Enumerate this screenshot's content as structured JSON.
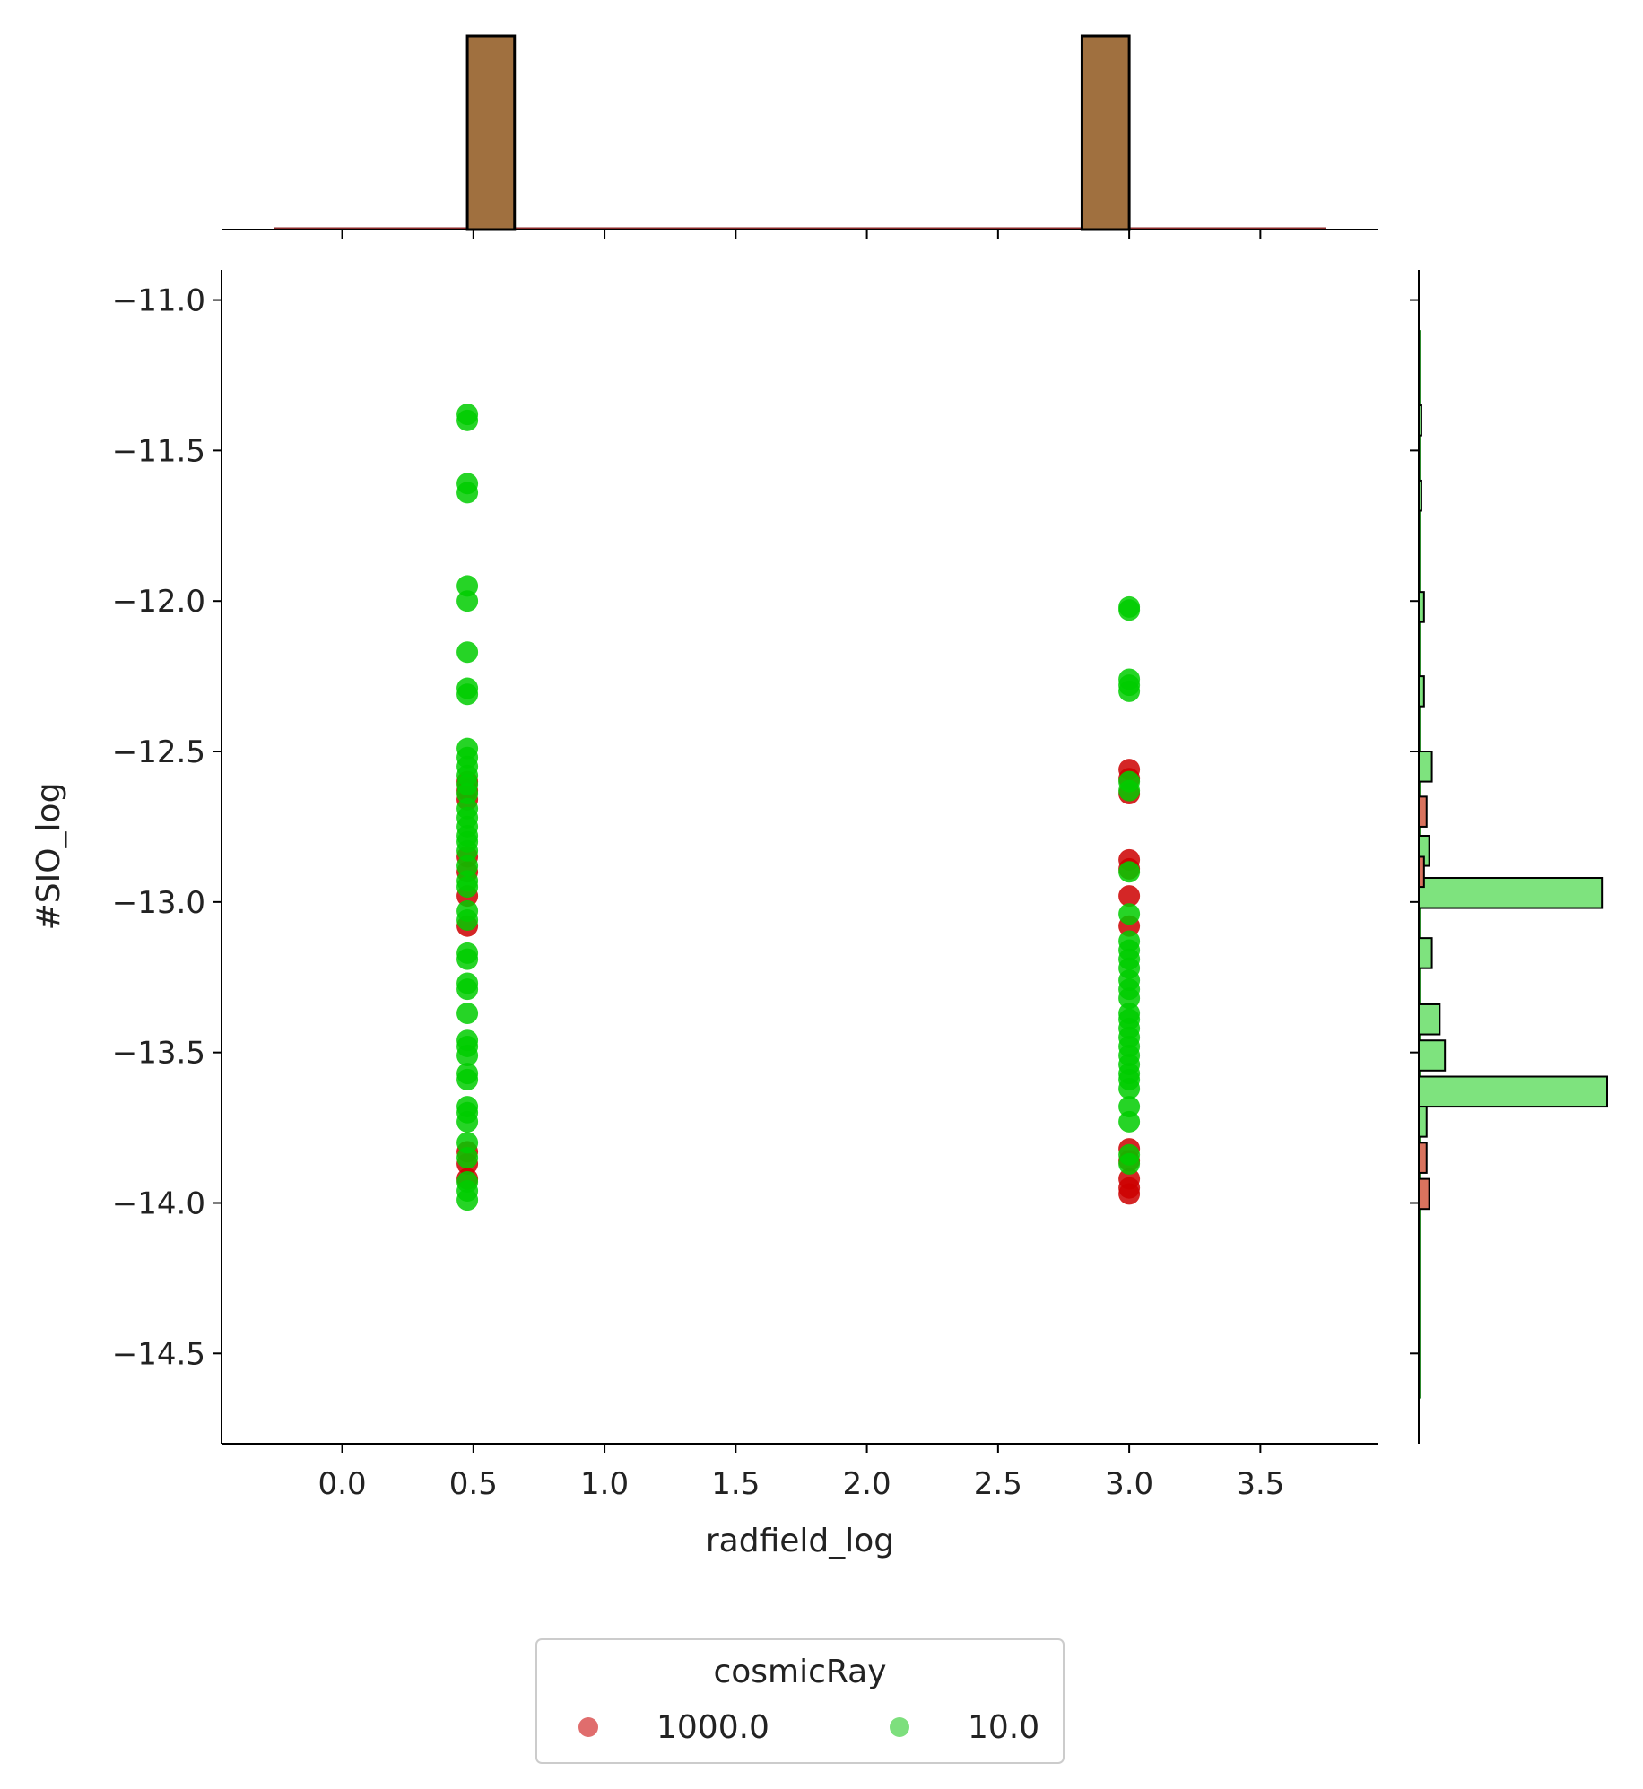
{
  "chart_data": {
    "type": "scatter",
    "subtype": "jointplot",
    "xlabel": "radfield_log",
    "ylabel": "#SIO_log",
    "xlim": [
      -0.46,
      3.95
    ],
    "ylim": [
      -14.8,
      -10.9
    ],
    "x_ticks": [
      0.0,
      0.5,
      1.0,
      1.5,
      2.0,
      2.5,
      3.0,
      3.5
    ],
    "x_tick_labels": [
      "0.0",
      "0.5",
      "1.0",
      "1.5",
      "2.0",
      "2.5",
      "3.0",
      "3.5"
    ],
    "y_ticks": [
      -11.0,
      -11.5,
      -12.0,
      -12.5,
      -13.0,
      -13.5,
      -14.0,
      -14.5
    ],
    "y_tick_labels": [
      "−11.0",
      "−11.5",
      "−12.0",
      "−12.5",
      "−13.0",
      "−13.5",
      "−14.0",
      "−14.5"
    ],
    "grid": false,
    "legend": {
      "title": "cosmicRay",
      "position": "bottom-center",
      "entries": [
        {
          "label": "1000.0",
          "color": "#e06d6d"
        },
        {
          "label": "10.0",
          "color": "#7ddf7d"
        }
      ]
    },
    "series": [
      {
        "name": "1000.0",
        "color": "#cc0000",
        "points": [
          [
            0.477,
            -12.6
          ],
          [
            0.477,
            -12.63
          ],
          [
            0.477,
            -12.66
          ],
          [
            0.477,
            -12.85
          ],
          [
            0.477,
            -12.9
          ],
          [
            0.477,
            -12.98
          ],
          [
            0.477,
            -13.08
          ],
          [
            0.477,
            -13.83
          ],
          [
            0.477,
            -13.87
          ],
          [
            0.477,
            -13.92
          ],
          [
            3.0,
            -12.56
          ],
          [
            3.0,
            -12.59
          ],
          [
            3.0,
            -12.64
          ],
          [
            3.0,
            -12.86
          ],
          [
            3.0,
            -12.89
          ],
          [
            3.0,
            -12.98
          ],
          [
            3.0,
            -13.08
          ],
          [
            3.0,
            -13.82
          ],
          [
            3.0,
            -13.86
          ],
          [
            3.0,
            -13.92
          ],
          [
            3.0,
            -13.95
          ],
          [
            3.0,
            -13.97
          ]
        ]
      },
      {
        "name": "10.0",
        "color": "#00cc00",
        "points": [
          [
            0.477,
            -11.38
          ],
          [
            0.477,
            -11.4
          ],
          [
            0.477,
            -11.61
          ],
          [
            0.477,
            -11.64
          ],
          [
            0.477,
            -11.95
          ],
          [
            0.477,
            -12.0
          ],
          [
            0.477,
            -12.17
          ],
          [
            0.477,
            -12.29
          ],
          [
            0.477,
            -12.31
          ],
          [
            0.477,
            -12.49
          ],
          [
            0.477,
            -12.52
          ],
          [
            0.477,
            -12.55
          ],
          [
            0.477,
            -12.58
          ],
          [
            0.477,
            -12.61
          ],
          [
            0.477,
            -12.64
          ],
          [
            0.477,
            -12.69
          ],
          [
            0.477,
            -12.72
          ],
          [
            0.477,
            -12.75
          ],
          [
            0.477,
            -12.78
          ],
          [
            0.477,
            -12.8
          ],
          [
            0.477,
            -12.83
          ],
          [
            0.477,
            -12.88
          ],
          [
            0.477,
            -12.93
          ],
          [
            0.477,
            -12.95
          ],
          [
            0.477,
            -13.03
          ],
          [
            0.477,
            -13.06
          ],
          [
            0.477,
            -13.17
          ],
          [
            0.477,
            -13.19
          ],
          [
            0.477,
            -13.27
          ],
          [
            0.477,
            -13.29
          ],
          [
            0.477,
            -13.37
          ],
          [
            0.477,
            -13.46
          ],
          [
            0.477,
            -13.48
          ],
          [
            0.477,
            -13.51
          ],
          [
            0.477,
            -13.57
          ],
          [
            0.477,
            -13.59
          ],
          [
            0.477,
            -13.68
          ],
          [
            0.477,
            -13.7
          ],
          [
            0.477,
            -13.73
          ],
          [
            0.477,
            -13.8
          ],
          [
            0.477,
            -13.85
          ],
          [
            0.477,
            -13.93
          ],
          [
            0.477,
            -13.96
          ],
          [
            0.477,
            -13.99
          ],
          [
            3.0,
            -12.02
          ],
          [
            3.0,
            -12.03
          ],
          [
            3.0,
            -12.26
          ],
          [
            3.0,
            -12.28
          ],
          [
            3.0,
            -12.3
          ],
          [
            3.0,
            -12.6
          ],
          [
            3.0,
            -12.63
          ],
          [
            3.0,
            -12.9
          ],
          [
            3.0,
            -13.04
          ],
          [
            3.0,
            -13.13
          ],
          [
            3.0,
            -13.16
          ],
          [
            3.0,
            -13.19
          ],
          [
            3.0,
            -13.22
          ],
          [
            3.0,
            -13.26
          ],
          [
            3.0,
            -13.29
          ],
          [
            3.0,
            -13.32
          ],
          [
            3.0,
            -13.37
          ],
          [
            3.0,
            -13.39
          ],
          [
            3.0,
            -13.42
          ],
          [
            3.0,
            -13.45
          ],
          [
            3.0,
            -13.48
          ],
          [
            3.0,
            -13.51
          ],
          [
            3.0,
            -13.54
          ],
          [
            3.0,
            -13.57
          ],
          [
            3.0,
            -13.59
          ],
          [
            3.0,
            -13.62
          ],
          [
            3.0,
            -13.68
          ],
          [
            3.0,
            -13.73
          ],
          [
            3.0,
            -13.84
          ],
          [
            3.0,
            -13.87
          ]
        ]
      }
    ],
    "marginal_x": {
      "type": "histogram",
      "color": "#a0703f",
      "bins": [
        {
          "x0": 0.477,
          "x1": 0.657,
          "count": 54
        },
        {
          "x0": 2.82,
          "x1": 3.0,
          "count": 54
        }
      ]
    },
    "marginal_y": {
      "type": "histogram",
      "series": [
        {
          "name": "10.0",
          "color": "#7ee37e",
          "bins": [
            {
              "y0": -11.45,
              "y1": -11.35,
              "count": 1
            },
            {
              "y0": -11.7,
              "y1": -11.6,
              "count": 1
            },
            {
              "y0": -12.07,
              "y1": -11.97,
              "count": 2
            },
            {
              "y0": -12.35,
              "y1": -12.25,
              "count": 2
            },
            {
              "y0": -12.6,
              "y1": -12.5,
              "count": 5
            },
            {
              "y0": -12.88,
              "y1": -12.78,
              "count": 4
            },
            {
              "y0": -13.02,
              "y1": -12.92,
              "count": 70
            },
            {
              "y0": -13.22,
              "y1": -13.12,
              "count": 5
            },
            {
              "y0": -13.44,
              "y1": -13.34,
              "count": 8
            },
            {
              "y0": -13.56,
              "y1": -13.46,
              "count": 10
            },
            {
              "y0": -13.68,
              "y1": -13.58,
              "count": 72
            },
            {
              "y0": -13.78,
              "y1": -13.68,
              "count": 3
            }
          ]
        },
        {
          "name": "1000.0",
          "color": "#d9735e",
          "bins": [
            {
              "y0": -12.75,
              "y1": -12.65,
              "count": 3
            },
            {
              "y0": -12.95,
              "y1": -12.85,
              "count": 2
            },
            {
              "y0": -13.9,
              "y1": -13.8,
              "count": 3
            },
            {
              "y0": -14.02,
              "y1": -13.92,
              "count": 4
            }
          ]
        }
      ]
    }
  }
}
